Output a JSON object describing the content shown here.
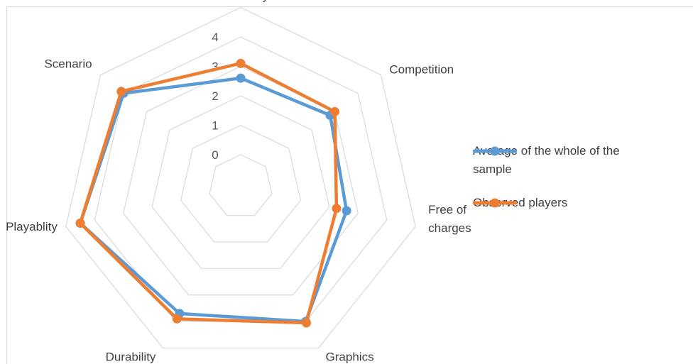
{
  "chart_data": {
    "type": "radar",
    "categories": [
      "Community",
      "Competition",
      "Free of charges",
      "Graphics",
      "Durability",
      "Playablity",
      "Scenario"
    ],
    "category_labels": [
      [
        "Community"
      ],
      [
        "Competition"
      ],
      [
        "Free of",
        "charges"
      ],
      [
        "Graphics"
      ],
      [
        "Durability"
      ],
      [
        "Playablity"
      ],
      [
        "Scenario"
      ]
    ],
    "rlim": [
      0,
      4
    ],
    "ticks": [
      "0",
      "1",
      "2",
      "3",
      "4"
    ],
    "grid": true,
    "legend_position": "right",
    "series": [
      {
        "name": "Average of the whole of the sample",
        "color": "#5b9bd5",
        "values": [
          2.6,
          2.8,
          2.6,
          4.0,
          3.7,
          4.5,
          4.0
        ]
      },
      {
        "name": "Observed players",
        "color": "#ed7d31",
        "values": [
          3.1,
          3.0,
          2.25,
          4.05,
          3.9,
          4.5,
          4.1
        ]
      }
    ]
  }
}
